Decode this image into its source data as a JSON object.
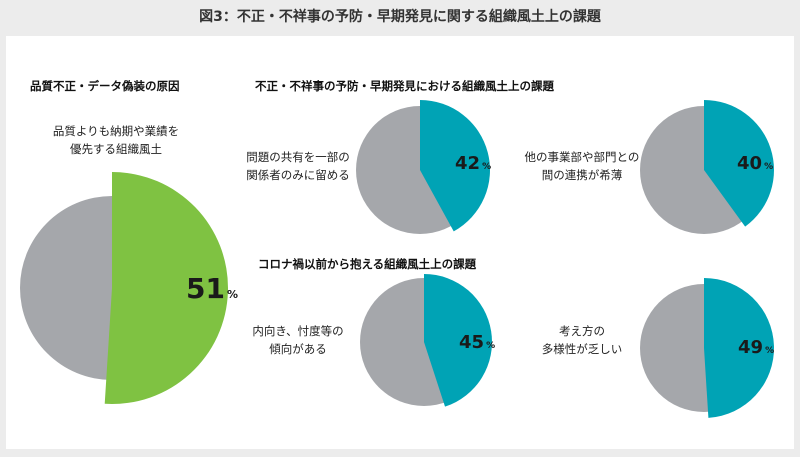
{
  "page_title": "図3：不正・不祥事の予防・早期発見に関する組織風土上の課題",
  "colors": {
    "page_bg": "#ececec",
    "panel_bg": "#ffffff",
    "rest": "#a5a7ab",
    "green": "#7fc242",
    "teal": "#00a3b5"
  },
  "chart_data": [
    {
      "type": "pie",
      "title": "品質不正・データ偽装の原因",
      "label_line1": "品質よりも納期や業績を",
      "label_line2": "優先する組織風土",
      "value": 51,
      "unit": "%",
      "color": "#7fc242"
    },
    {
      "type": "pie",
      "title": "不正・不祥事の予防・早期発見における組織風土上の課題",
      "label_line1": "問題の共有を一部の",
      "label_line2": "関係者のみに留める",
      "value": 42,
      "unit": "%",
      "color": "#00a3b5"
    },
    {
      "type": "pie",
      "title": "",
      "label_line1": "他の事業部や部門との",
      "label_line2": "間の連携が希薄",
      "value": 40,
      "unit": "%",
      "color": "#00a3b5"
    },
    {
      "type": "pie",
      "title": "コロナ禍以前から抱える組織風土上の課題",
      "label_line1": "内向き、忖度等の",
      "label_line2": "傾向がある",
      "value": 45,
      "unit": "%",
      "color": "#00a3b5"
    },
    {
      "type": "pie",
      "title": "",
      "label_line1": "考え方の",
      "label_line2": "多様性が乏しい",
      "value": 49,
      "unit": "%",
      "color": "#00a3b5"
    }
  ]
}
